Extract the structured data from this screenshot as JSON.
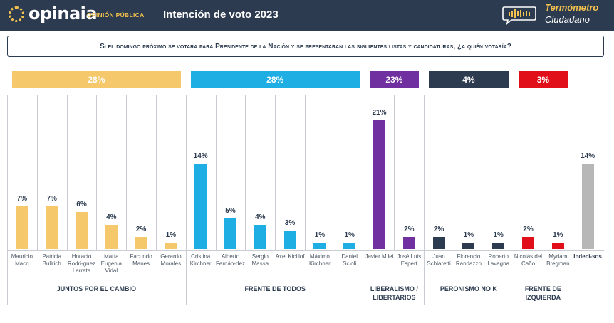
{
  "header": {
    "brand": "opinaia",
    "brand_sub": "OPINIÓN PÚBLICA",
    "title": "Intención de voto 2023",
    "thermo_line1": "Termómetro",
    "thermo_line2": "Ciudadano"
  },
  "question": "Si el domingo próximo se votara para Presidente de la Nación y se presentaran las siguientes listas y candidaturas, ¿a quién votaría?",
  "colors": {
    "juntos": "#f5c86b",
    "frente_todos": "#1faee3",
    "libertarios": "#7030a0",
    "peronismo": "#2c3b4f",
    "izquierda": "#e10f1a",
    "indecisos": "#b7b7b7"
  },
  "chart_data": {
    "type": "bar",
    "y_unit": "%",
    "groups": [
      {
        "name": "JUNTOS POR EL CAMBIO",
        "total": "28%",
        "color_key": "juntos"
      },
      {
        "name": "FRENTE DE TODOS",
        "total": "28%",
        "color_key": "frente_todos"
      },
      {
        "name": "LIBERALISMO / LIBERTARIOS",
        "total": "23%",
        "color_key": "libertarios"
      },
      {
        "name": "PERONISMO NO K",
        "total": "4%",
        "color_key": "peronismo"
      },
      {
        "name": "FRENTE DE IZQUIERDA",
        "total": "3%",
        "color_key": "izquierda"
      }
    ],
    "categories": [
      {
        "name": "Mauricio Macri",
        "value": 7,
        "label": "7%",
        "group": 0
      },
      {
        "name": "Patricia Bullrich",
        "value": 7,
        "label": "7%",
        "group": 0
      },
      {
        "name": "Horacio Rodri-guez Larreta",
        "value": 6,
        "label": "6%",
        "group": 0
      },
      {
        "name": "María Eugenia Vidal",
        "value": 4,
        "label": "4%",
        "group": 0
      },
      {
        "name": "Facundo Manes",
        "value": 2,
        "label": "2%",
        "group": 0
      },
      {
        "name": "Gerardo Morales",
        "value": 1,
        "label": "1%",
        "group": 0
      },
      {
        "name": "Cristina Kirchner",
        "value": 14,
        "label": "14%",
        "group": 1
      },
      {
        "name": "Alberto Fernán-dez",
        "value": 5,
        "label": "5%",
        "group": 1
      },
      {
        "name": "Sergio Massa",
        "value": 4,
        "label": "4%",
        "group": 1
      },
      {
        "name": "Axel Kicillof",
        "value": 3,
        "label": "3%",
        "group": 1
      },
      {
        "name": "Máximo Kirchner",
        "value": 1,
        "label": "1%",
        "group": 1
      },
      {
        "name": "Daniel Scioli",
        "value": 1,
        "label": "1%",
        "group": 1
      },
      {
        "name": "Javier Milei",
        "value": 21,
        "label": "21%",
        "group": 2
      },
      {
        "name": "José Luis Espert",
        "value": 2,
        "label": "2%",
        "group": 2
      },
      {
        "name": "Juan Schiaretti",
        "value": 2,
        "label": "2%",
        "group": 3
      },
      {
        "name": "Florencio Randazzo",
        "value": 1,
        "label": "1%",
        "group": 3
      },
      {
        "name": "Roberto Lavagna",
        "value": 1,
        "label": "1%",
        "group": 3
      },
      {
        "name": "Nicolás del Caño",
        "value": 2,
        "label": "2%",
        "group": 4
      },
      {
        "name": "Myriam Bregman",
        "value": 1,
        "label": "1%",
        "group": 4
      },
      {
        "name": "Indeci-sos",
        "value": 14,
        "label": "14%",
        "group": -1
      }
    ]
  }
}
